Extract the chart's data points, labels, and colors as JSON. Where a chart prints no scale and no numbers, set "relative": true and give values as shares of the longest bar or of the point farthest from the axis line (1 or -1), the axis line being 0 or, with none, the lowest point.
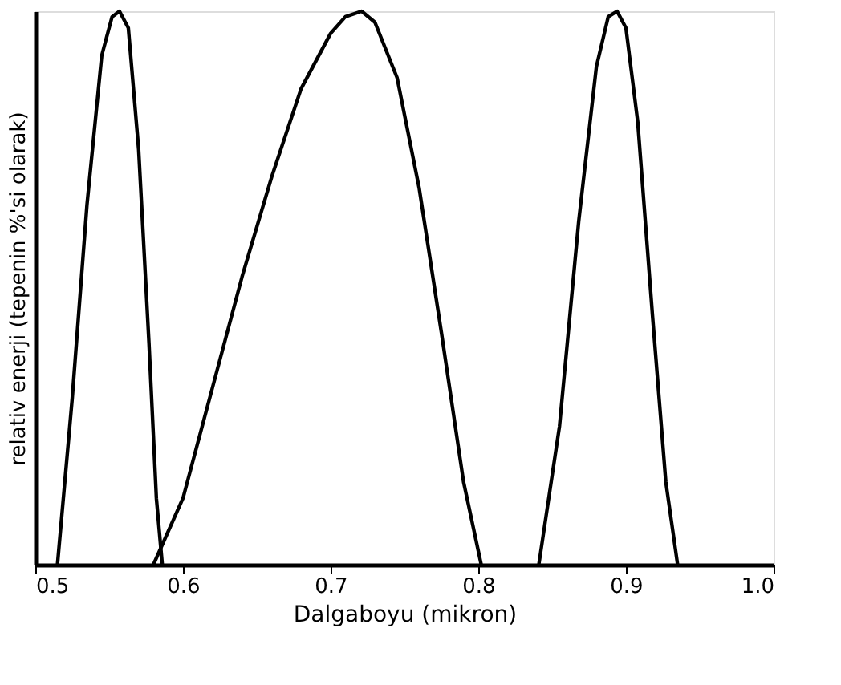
{
  "chart_data": {
    "type": "line",
    "relative": true,
    "xlabel": "Dalgaboyu (mikron)",
    "ylabel": "relativ enerji (tepenin %'si olarak)",
    "xlim": [
      0.5,
      1.0
    ],
    "xticks": [
      {
        "value": 0.5,
        "label": "0.5"
      },
      0.6,
      0.7,
      0.8,
      0.9,
      {
        "value": 1.0,
        "label": "1.0"
      }
    ],
    "marker": "none",
    "line_style": "solid",
    "series": [
      {
        "color": "#000000",
        "x": [
          0.515,
          0.525,
          0.535,
          0.545,
          0.552,
          0.557,
          0.563,
          0.57,
          0.577,
          0.582,
          0.586
        ],
        "values": [
          0,
          0.3,
          0.65,
          0.92,
          0.99,
          1,
          0.97,
          0.75,
          0.4,
          0.12,
          0
        ]
      },
      {
        "color": "#000000",
        "x": [
          0.58,
          0.6,
          0.62,
          0.64,
          0.66,
          0.68,
          0.7,
          0.71,
          0.721,
          0.73,
          0.745,
          0.76,
          0.775,
          0.79,
          0.802
        ],
        "values": [
          0,
          0.12,
          0.32,
          0.52,
          0.7,
          0.86,
          0.96,
          0.99,
          1,
          0.98,
          0.88,
          0.68,
          0.42,
          0.15,
          0
        ]
      },
      {
        "color": "#000000",
        "x": [
          0.841,
          0.855,
          0.868,
          0.88,
          0.888,
          0.894,
          0.9,
          0.908,
          0.918,
          0.927,
          0.935
        ],
        "values": [
          0,
          0.25,
          0.62,
          0.9,
          0.99,
          1,
          0.97,
          0.8,
          0.45,
          0.15,
          0
        ]
      }
    ]
  }
}
